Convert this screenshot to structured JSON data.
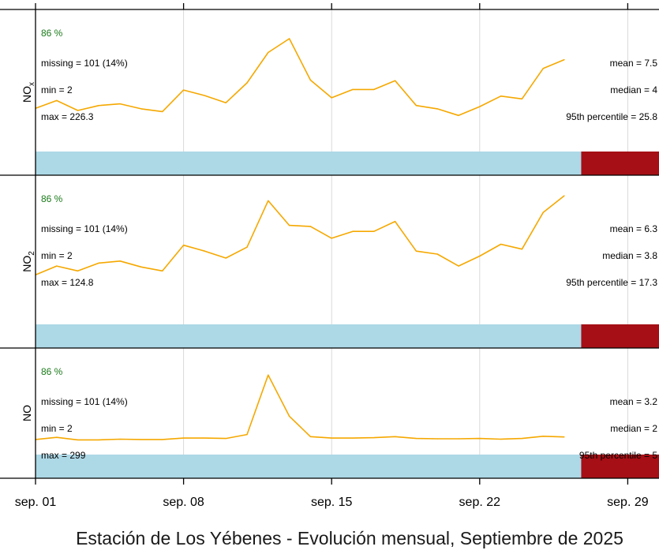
{
  "chart_data": {
    "type": "line",
    "title": "Estación de Los Yébenes - Evolución mensual, Septiembre de 2025",
    "xlabel": "",
    "x_ticks": [
      "sep. 01",
      "sep. 08",
      "sep. 15",
      "sep. 22",
      "sep. 29"
    ],
    "grid": true,
    "colors": {
      "line": "#f5a800",
      "data_bar": "#add8e6",
      "missing_bar": "#a50f15",
      "pct": "#1a7a1a",
      "gridline": "#d9d9d9"
    },
    "panels": [
      {
        "name": "NO",
        "label_main": "NO",
        "label_sub": "",
        "pct": "86 %",
        "missing": "missing = 101 (14%)",
        "min": "min = 2",
        "max": "max = 299",
        "mean": "mean = 3.2",
        "median": "median = 2",
        "p95": "95th percentile = 5",
        "data_fraction": 0.86,
        "ylim": [
          0,
          24
        ],
        "x": [
          1,
          2,
          3,
          4,
          5,
          6,
          7,
          8,
          9,
          10,
          11,
          12,
          13,
          14,
          15,
          16,
          17,
          18,
          19,
          20,
          21,
          22,
          23,
          24,
          25,
          26
        ],
        "values": [
          2.0,
          2.6,
          1.9,
          1.9,
          2.1,
          2.0,
          2.0,
          2.4,
          2.4,
          2.3,
          3.4,
          20.0,
          8.5,
          2.8,
          2.4,
          2.4,
          2.5,
          2.8,
          2.3,
          2.2,
          2.2,
          2.3,
          2.1,
          2.3,
          2.9,
          2.7
        ]
      },
      {
        "name": "NO2",
        "label_main": "NO",
        "label_sub": "2",
        "pct": "86 %",
        "missing": "missing = 101 (14%)",
        "min": "min = 2",
        "max": "max = 124.8",
        "mean": "mean = 6.3",
        "median": "median = 3.8",
        "p95": "95th percentile = 17.3",
        "data_fraction": 0.86,
        "ylim": [
          0,
          13
        ],
        "x": [
          1,
          2,
          3,
          4,
          5,
          6,
          7,
          8,
          9,
          10,
          11,
          12,
          13,
          14,
          15,
          16,
          17,
          18,
          19,
          20,
          21,
          22,
          23,
          24,
          25,
          26
        ],
        "values": [
          4.2,
          5.1,
          4.6,
          5.4,
          5.6,
          5.0,
          4.6,
          7.2,
          6.6,
          5.9,
          7.0,
          11.7,
          9.2,
          9.1,
          7.9,
          8.6,
          8.6,
          9.6,
          6.6,
          6.3,
          5.1,
          6.1,
          7.3,
          6.8,
          10.5,
          12.2
        ]
      },
      {
        "name": "NOx",
        "label_main": "NO",
        "label_sub": "x",
        "pct": "86 %",
        "missing": "missing = 101 (14%)",
        "min": "min = 2",
        "max": "max = 226.3",
        "mean": "mean = 7.5",
        "median": "median = 4",
        "p95": "95th percentile = 25.8",
        "data_fraction": 0.86,
        "ylim": [
          0,
          22
        ],
        "x": [
          1,
          2,
          3,
          4,
          5,
          6,
          7,
          8,
          9,
          10,
          11,
          12,
          13,
          14,
          15,
          16,
          17,
          18,
          19,
          20,
          21,
          22,
          23,
          24,
          25,
          26
        ],
        "values": [
          6.4,
          7.8,
          6.0,
          6.9,
          7.2,
          6.3,
          5.8,
          9.7,
          8.7,
          7.4,
          11.0,
          16.5,
          19.0,
          11.5,
          8.3,
          9.8,
          9.8,
          11.4,
          6.9,
          6.3,
          5.1,
          6.7,
          8.6,
          8.1,
          13.6,
          15.2
        ]
      }
    ]
  }
}
